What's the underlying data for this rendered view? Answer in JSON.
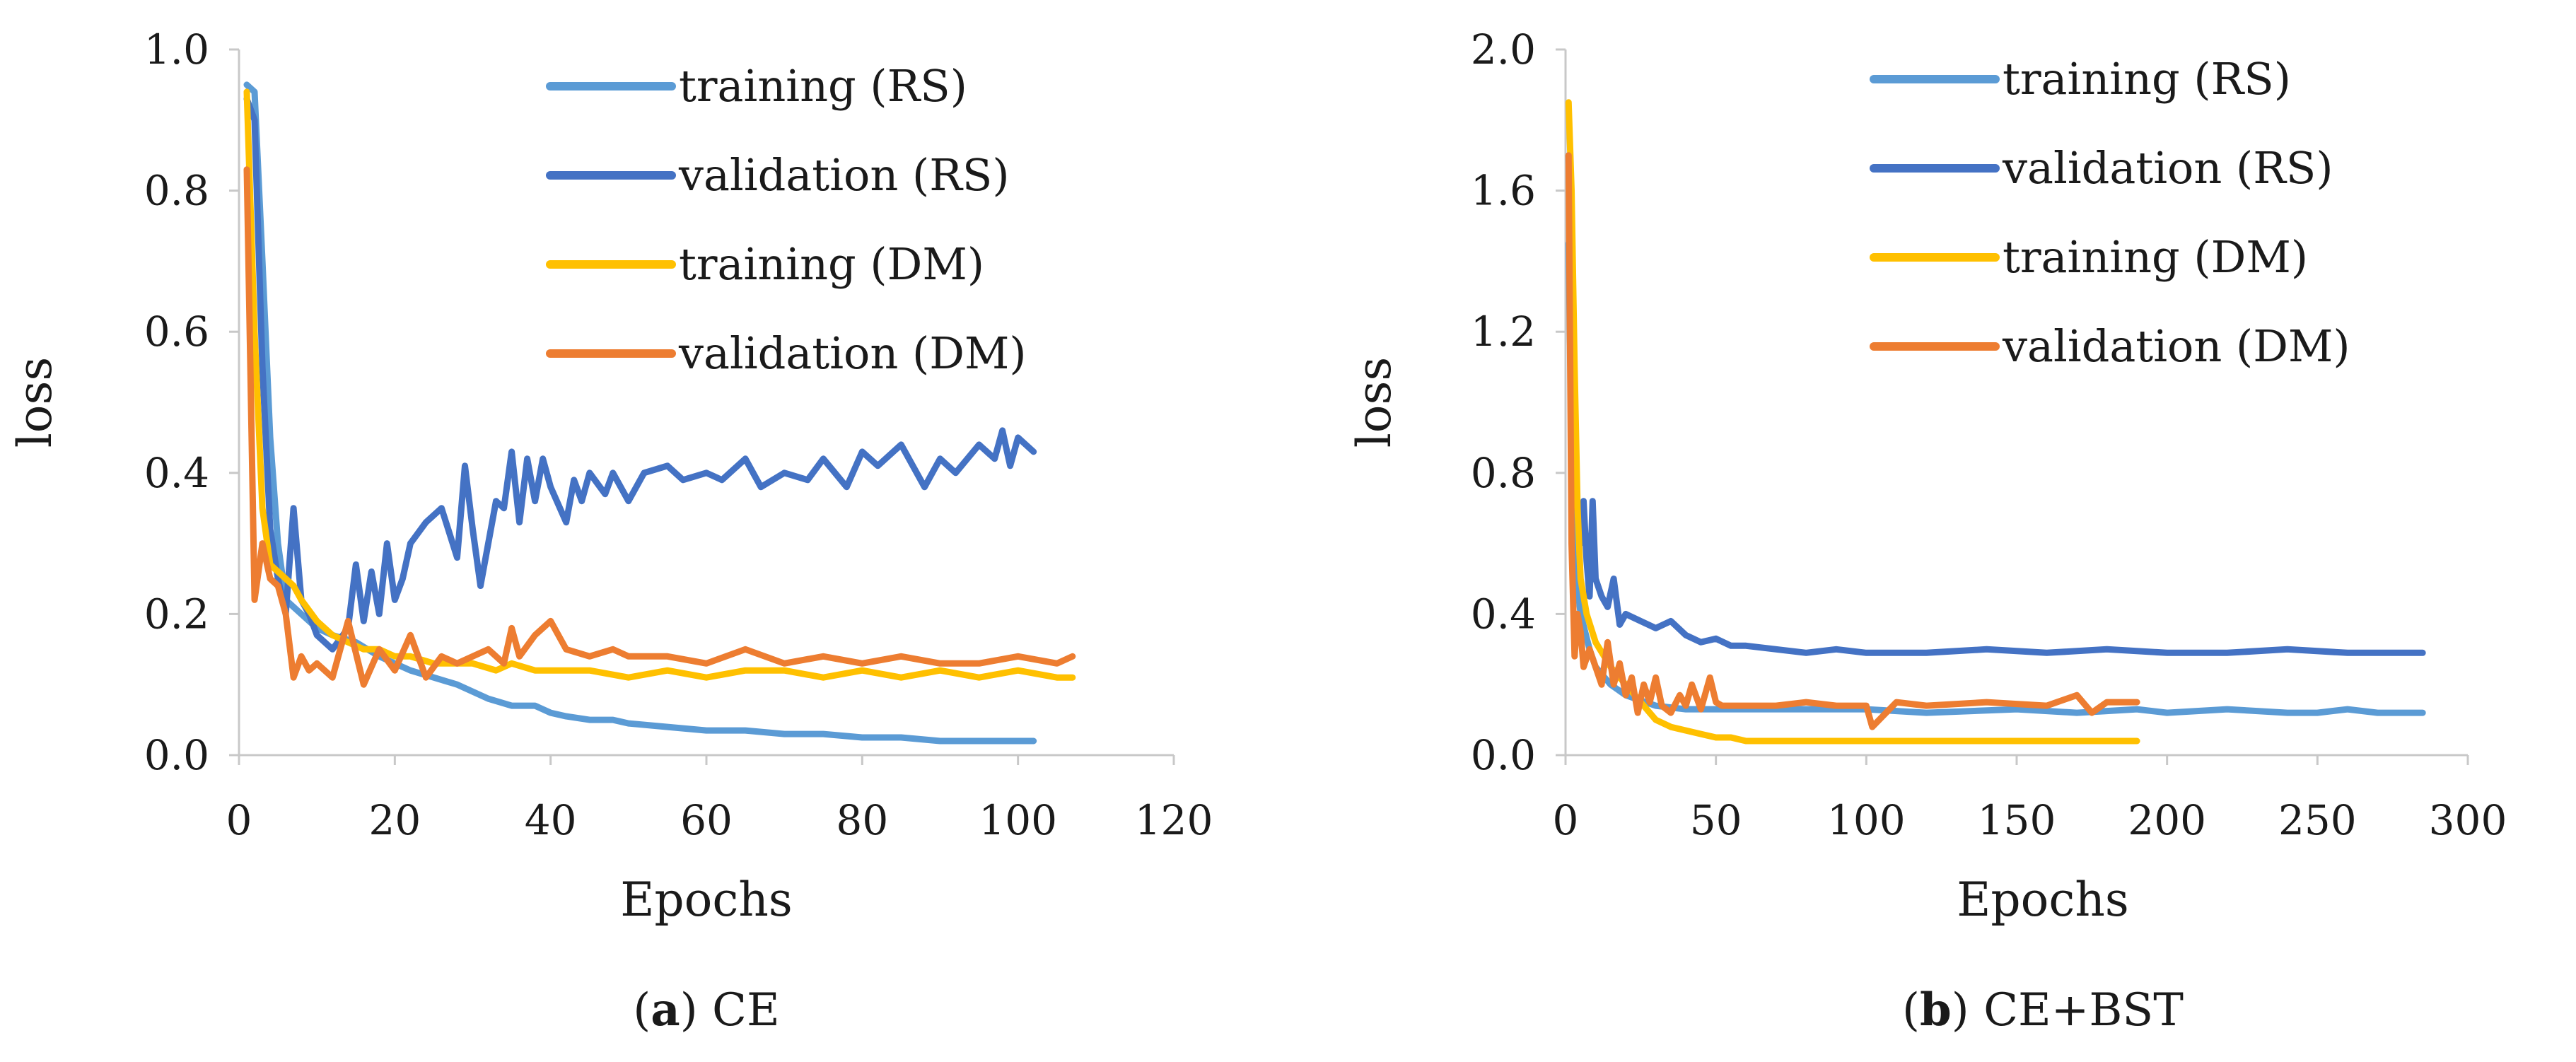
{
  "figure": {
    "background": "#ffffff"
  },
  "chart_data": [
    {
      "id": "a",
      "type": "line",
      "caption_bold": "a",
      "caption_text": "CE",
      "xlabel": "Epochs",
      "ylabel": "loss",
      "xlim": [
        0,
        120
      ],
      "ylim": [
        0,
        1.0
      ],
      "xticks": [
        "0",
        "20",
        "40",
        "60",
        "80",
        "100",
        "120"
      ],
      "yticks": [
        "0.0",
        "0.2",
        "0.4",
        "0.6",
        "0.8",
        "1.0"
      ],
      "grid": false,
      "legend_position": "top-right",
      "series": [
        {
          "name": "training (RS)",
          "color": "#5B9BD5",
          "x": [
            1,
            2,
            3,
            4,
            5,
            6,
            8,
            10,
            12,
            15,
            18,
            20,
            22,
            25,
            28,
            30,
            32,
            35,
            38,
            40,
            42,
            45,
            48,
            50,
            55,
            60,
            65,
            70,
            75,
            80,
            85,
            90,
            95,
            100,
            102
          ],
          "y": [
            0.95,
            0.94,
            0.7,
            0.45,
            0.3,
            0.22,
            0.2,
            0.18,
            0.17,
            0.16,
            0.14,
            0.13,
            0.12,
            0.11,
            0.1,
            0.09,
            0.08,
            0.07,
            0.07,
            0.06,
            0.055,
            0.05,
            0.05,
            0.045,
            0.04,
            0.035,
            0.035,
            0.03,
            0.03,
            0.025,
            0.025,
            0.02,
            0.02,
            0.02,
            0.02
          ]
        },
        {
          "name": "validation (RS)",
          "color": "#4472C4",
          "x": [
            1,
            2,
            3,
            4,
            5,
            6,
            7,
            8,
            9,
            10,
            12,
            14,
            15,
            16,
            17,
            18,
            19,
            20,
            21,
            22,
            24,
            26,
            28,
            29,
            30,
            31,
            32,
            33,
            34,
            35,
            36,
            37,
            38,
            39,
            40,
            42,
            43,
            44,
            45,
            47,
            48,
            50,
            52,
            55,
            57,
            60,
            62,
            65,
            67,
            70,
            73,
            75,
            78,
            80,
            82,
            85,
            88,
            90,
            92,
            95,
            97,
            98,
            99,
            100,
            102
          ],
          "y": [
            0.93,
            0.9,
            0.55,
            0.32,
            0.25,
            0.2,
            0.35,
            0.22,
            0.2,
            0.17,
            0.15,
            0.18,
            0.27,
            0.19,
            0.26,
            0.2,
            0.3,
            0.22,
            0.25,
            0.3,
            0.33,
            0.35,
            0.28,
            0.41,
            0.32,
            0.24,
            0.3,
            0.36,
            0.35,
            0.43,
            0.33,
            0.42,
            0.36,
            0.42,
            0.38,
            0.33,
            0.39,
            0.36,
            0.4,
            0.37,
            0.4,
            0.36,
            0.4,
            0.41,
            0.39,
            0.4,
            0.39,
            0.42,
            0.38,
            0.4,
            0.39,
            0.42,
            0.38,
            0.43,
            0.41,
            0.44,
            0.38,
            0.42,
            0.4,
            0.44,
            0.42,
            0.46,
            0.41,
            0.45,
            0.43
          ]
        },
        {
          "name": "training (DM)",
          "color": "#FFC000",
          "x": [
            1,
            2,
            3,
            4,
            5,
            6,
            7,
            8,
            10,
            12,
            14,
            16,
            18,
            20,
            22,
            25,
            28,
            30,
            33,
            35,
            38,
            40,
            45,
            50,
            55,
            60,
            65,
            70,
            75,
            80,
            85,
            90,
            95,
            100,
            105,
            107
          ],
          "y": [
            0.94,
            0.6,
            0.35,
            0.27,
            0.26,
            0.25,
            0.24,
            0.22,
            0.19,
            0.17,
            0.16,
            0.15,
            0.15,
            0.14,
            0.14,
            0.13,
            0.13,
            0.13,
            0.12,
            0.13,
            0.12,
            0.12,
            0.12,
            0.11,
            0.12,
            0.11,
            0.12,
            0.12,
            0.11,
            0.12,
            0.11,
            0.12,
            0.11,
            0.12,
            0.11,
            0.11
          ]
        },
        {
          "name": "validation (DM)",
          "color": "#ED7D31",
          "x": [
            1,
            2,
            3,
            4,
            5,
            6,
            7,
            8,
            9,
            10,
            12,
            14,
            16,
            18,
            20,
            22,
            24,
            26,
            28,
            30,
            32,
            34,
            35,
            36,
            38,
            40,
            42,
            45,
            48,
            50,
            55,
            60,
            65,
            70,
            75,
            80,
            85,
            90,
            95,
            100,
            105,
            107
          ],
          "y": [
            0.83,
            0.22,
            0.3,
            0.25,
            0.24,
            0.2,
            0.11,
            0.14,
            0.12,
            0.13,
            0.11,
            0.19,
            0.1,
            0.15,
            0.12,
            0.17,
            0.11,
            0.14,
            0.13,
            0.14,
            0.15,
            0.13,
            0.18,
            0.14,
            0.17,
            0.19,
            0.15,
            0.14,
            0.15,
            0.14,
            0.14,
            0.13,
            0.15,
            0.13,
            0.14,
            0.13,
            0.14,
            0.13,
            0.13,
            0.14,
            0.13,
            0.14
          ]
        }
      ]
    },
    {
      "id": "b",
      "type": "line",
      "caption_bold": "b",
      "caption_text": "CE+BST",
      "xlabel": "Epochs",
      "ylabel": "loss",
      "xlim": [
        0,
        300
      ],
      "ylim": [
        0,
        2.0
      ],
      "xticks": [
        "0",
        "50",
        "100",
        "150",
        "200",
        "250",
        "300"
      ],
      "yticks": [
        "0.0",
        "0.4",
        "0.8",
        "1.2",
        "1.6",
        "2.0"
      ],
      "grid": false,
      "legend_position": "top-right",
      "series": [
        {
          "name": "training (RS)",
          "color": "#5B9BD5",
          "x": [
            1,
            2,
            3,
            5,
            8,
            10,
            15,
            20,
            30,
            40,
            50,
            60,
            80,
            100,
            120,
            150,
            170,
            190,
            200,
            220,
            240,
            250,
            260,
            270,
            280,
            285
          ],
          "y": [
            1.45,
            0.9,
            0.55,
            0.4,
            0.3,
            0.25,
            0.2,
            0.17,
            0.14,
            0.13,
            0.13,
            0.13,
            0.13,
            0.13,
            0.12,
            0.13,
            0.12,
            0.13,
            0.12,
            0.13,
            0.12,
            0.12,
            0.13,
            0.12,
            0.12,
            0.12
          ]
        },
        {
          "name": "validation (RS)",
          "color": "#4472C4",
          "x": [
            1,
            2,
            3,
            4,
            5,
            6,
            7,
            8,
            9,
            10,
            12,
            14,
            16,
            18,
            20,
            25,
            30,
            35,
            40,
            45,
            50,
            55,
            60,
            70,
            80,
            90,
            100,
            120,
            140,
            160,
            180,
            200,
            220,
            240,
            260,
            280,
            285
          ],
          "y": [
            1.7,
            1.2,
            0.9,
            0.7,
            0.6,
            0.72,
            0.55,
            0.45,
            0.72,
            0.5,
            0.45,
            0.42,
            0.5,
            0.37,
            0.4,
            0.38,
            0.36,
            0.38,
            0.34,
            0.32,
            0.33,
            0.31,
            0.31,
            0.3,
            0.29,
            0.3,
            0.29,
            0.29,
            0.3,
            0.29,
            0.3,
            0.29,
            0.29,
            0.3,
            0.29,
            0.29,
            0.29
          ]
        },
        {
          "name": "training (DM)",
          "color": "#FFC000",
          "x": [
            1,
            2,
            3,
            4,
            5,
            7,
            10,
            15,
            20,
            25,
            30,
            35,
            40,
            45,
            50,
            55,
            60,
            70,
            80,
            100,
            120,
            150,
            170,
            190
          ],
          "y": [
            1.85,
            1.6,
            1.1,
            0.7,
            0.5,
            0.4,
            0.32,
            0.25,
            0.2,
            0.15,
            0.1,
            0.08,
            0.07,
            0.06,
            0.05,
            0.05,
            0.04,
            0.04,
            0.04,
            0.04,
            0.04,
            0.04,
            0.04,
            0.04
          ]
        },
        {
          "name": "validation (DM)",
          "color": "#ED7D31",
          "x": [
            1,
            2,
            3,
            4,
            5,
            6,
            8,
            10,
            12,
            14,
            16,
            18,
            20,
            22,
            24,
            26,
            28,
            30,
            32,
            35,
            38,
            40,
            42,
            45,
            48,
            50,
            52,
            55,
            60,
            70,
            80,
            90,
            100,
            102,
            110,
            120,
            140,
            160,
            170,
            175,
            180,
            190
          ],
          "y": [
            1.7,
            0.6,
            0.28,
            0.4,
            0.35,
            0.25,
            0.3,
            0.25,
            0.2,
            0.32,
            0.2,
            0.26,
            0.17,
            0.22,
            0.12,
            0.2,
            0.15,
            0.22,
            0.14,
            0.12,
            0.17,
            0.14,
            0.2,
            0.13,
            0.22,
            0.15,
            0.14,
            0.14,
            0.14,
            0.14,
            0.15,
            0.14,
            0.14,
            0.08,
            0.15,
            0.14,
            0.15,
            0.14,
            0.17,
            0.12,
            0.15,
            0.15
          ]
        }
      ]
    }
  ]
}
